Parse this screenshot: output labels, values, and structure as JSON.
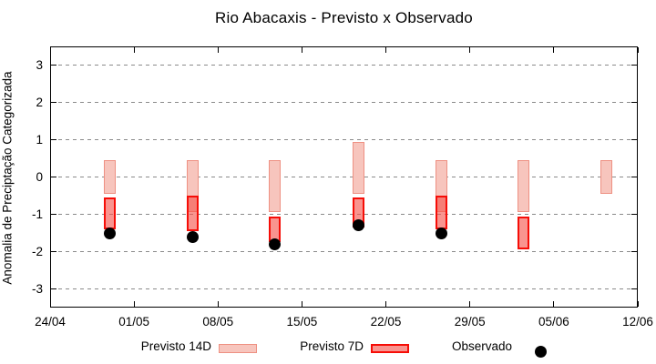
{
  "title": "Rio Abacaxis - Previsto x Observado",
  "chart_data": {
    "type": "bar",
    "subtype": "floating-range-bars-with-scatter-overlay",
    "title": "Rio Abacaxis - Previsto x Observado",
    "xlabel": "",
    "ylabel": "Anomalia de Preciptação Categorizada",
    "ylim": [
      -3.5,
      3.5
    ],
    "yticks": [
      -3,
      -2,
      -1,
      0,
      1,
      2,
      3
    ],
    "grid": "horizontal-dashed",
    "x_axis": {
      "tick_labels": [
        "24/04",
        "01/05",
        "08/05",
        "15/05",
        "22/05",
        "29/05",
        "05/06",
        "12/06"
      ],
      "tick_days": [
        0,
        7,
        14,
        21,
        28,
        35,
        42,
        49
      ],
      "span_days": 49
    },
    "series_names": [
      "Previsto 14D",
      "Previsto 7D",
      "Observado"
    ],
    "groups": [
      {
        "x_day": 5.0,
        "previsto_14d": {
          "low": -0.45,
          "high": 0.45
        },
        "previsto_7d": {
          "low": -1.4,
          "high": -0.55
        },
        "observado": -1.5
      },
      {
        "x_day": 11.9,
        "previsto_14d": {
          "low": -0.95,
          "high": 0.45
        },
        "previsto_7d": {
          "low": -1.45,
          "high": -0.5
        },
        "observado": -1.6
      },
      {
        "x_day": 18.7,
        "previsto_14d": {
          "low": -0.95,
          "high": 0.45
        },
        "previsto_7d": {
          "low": -1.75,
          "high": -1.05
        },
        "observado": -1.8
      },
      {
        "x_day": 25.7,
        "previsto_14d": {
          "low": -0.45,
          "high": 0.95
        },
        "previsto_7d": {
          "low": -1.35,
          "high": -0.55
        },
        "observado": -1.3
      },
      {
        "x_day": 32.6,
        "previsto_14d": {
          "low": -0.95,
          "high": 0.45
        },
        "previsto_7d": {
          "low": -1.4,
          "high": -0.5
        },
        "observado": -1.5
      },
      {
        "x_day": 39.5,
        "previsto_14d": {
          "low": -0.95,
          "high": 0.45
        },
        "previsto_7d": {
          "low": -1.95,
          "high": -1.05
        },
        "observado": null
      },
      {
        "x_day": 46.4,
        "previsto_14d": {
          "low": -0.45,
          "high": 0.45
        },
        "previsto_7d": null,
        "observado": null
      }
    ],
    "legend": {
      "position": "bottom",
      "items": [
        {
          "label": "Previsto 14D",
          "swatch": "light-pink-box"
        },
        {
          "label": "Previsto 7D",
          "swatch": "red-box"
        },
        {
          "label": "Observado",
          "swatch": "black-dot"
        }
      ]
    },
    "colors": {
      "previsto_14d_fill": "#f7c5bd",
      "previsto_14d_border": "#ee9082",
      "previsto_7d_fill": "rgba(246,82,74,0.62)",
      "previsto_7d_border": "#f60d07",
      "observado_dot": "#000000",
      "grid": "#8a8a8a",
      "axis": "#000000"
    }
  }
}
